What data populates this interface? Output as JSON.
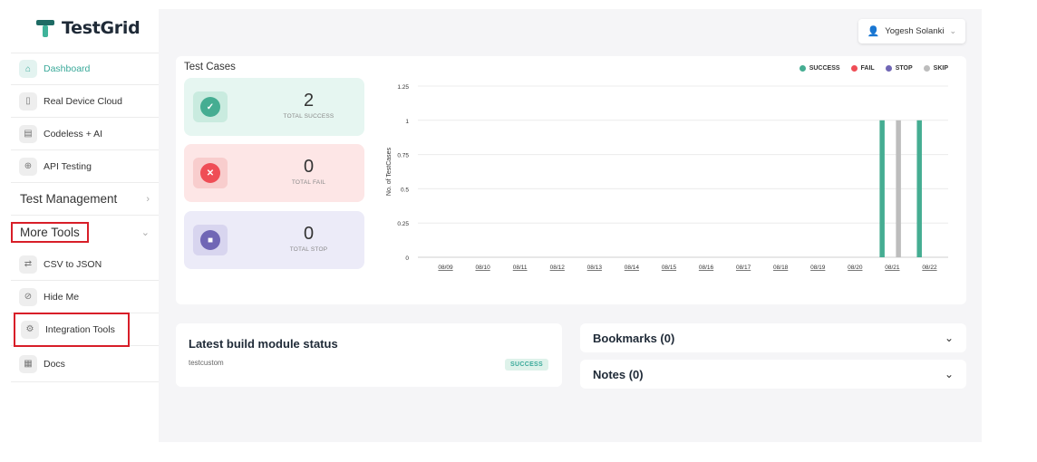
{
  "brand": {
    "name": "TestGrid",
    "primary": "#1e6b64",
    "accent": "#3fb39a"
  },
  "sidebar": {
    "items": [
      {
        "label": "Dashboard",
        "icon": "home-icon"
      },
      {
        "label": "Real Device Cloud",
        "icon": "devices-icon"
      },
      {
        "label": "Codeless + AI",
        "icon": "codeless-icon"
      },
      {
        "label": "API Testing",
        "icon": "api-icon"
      }
    ],
    "test_management": "Test Management",
    "more_tools": "More Tools",
    "tools": [
      {
        "label": "CSV to JSON",
        "icon": "convert-icon"
      },
      {
        "label": "Hide Me",
        "icon": "eye-off-icon"
      },
      {
        "label": "Integration Tools",
        "icon": "gear-icon"
      }
    ],
    "docs": "Docs"
  },
  "header": {
    "user_name": "Yogesh Solanki"
  },
  "test_cases": {
    "title": "Test Cases",
    "stats": [
      {
        "value": "2",
        "label": "TOTAL SUCCESS"
      },
      {
        "value": "0",
        "label": "TOTAL FAIL"
      },
      {
        "value": "0",
        "label": "TOTAL STOP"
      }
    ]
  },
  "chart_data": {
    "type": "bar",
    "title": "",
    "xlabel": "",
    "ylabel": "No. of TestCases",
    "ylim": [
      0,
      1.25
    ],
    "yticks": [
      "0",
      "0.25",
      "0.5",
      "0.75",
      "1",
      "1.25"
    ],
    "categories": [
      "08/09",
      "08/10",
      "08/11",
      "08/12",
      "08/13",
      "08/14",
      "08/15",
      "08/16",
      "08/17",
      "08/18",
      "08/19",
      "08/20",
      "08/21",
      "08/22"
    ],
    "series": [
      {
        "name": "SUCCESS",
        "color": "#45ad92",
        "values": [
          0,
          0,
          0,
          0,
          0,
          0,
          0,
          0,
          0,
          0,
          0,
          0,
          1,
          1
        ]
      },
      {
        "name": "FAIL",
        "color": "#ef4d56",
        "values": [
          0,
          0,
          0,
          0,
          0,
          0,
          0,
          0,
          0,
          0,
          0,
          0,
          0,
          0
        ]
      },
      {
        "name": "STOP",
        "color": "#7066b5",
        "values": [
          0,
          0,
          0,
          0,
          0,
          0,
          0,
          0,
          0,
          0,
          0,
          0,
          0,
          0
        ]
      },
      {
        "name": "SKIP",
        "color": "#bdbdbd",
        "values": [
          0,
          0,
          0,
          0,
          0,
          0,
          0,
          0,
          0,
          0,
          0,
          0,
          1,
          0
        ]
      }
    ],
    "grid": true,
    "legend": "top-right"
  },
  "build": {
    "title": "Latest build module status",
    "module": "testcustom",
    "status": "SUCCESS"
  },
  "bookmarks": {
    "label": "Bookmarks (0)"
  },
  "notes": {
    "label": "Notes (0)"
  }
}
